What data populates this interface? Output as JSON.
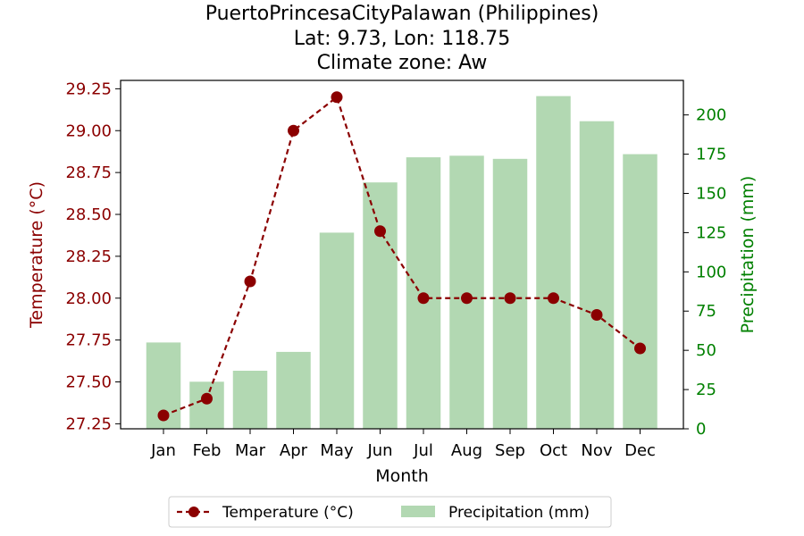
{
  "chart_data": {
    "type": "bar+line",
    "title_lines": [
      "PuertoPrincesaCityPalawan (Philippines)",
      "Lat: 9.73, Lon: 118.75",
      "Climate zone: Aw"
    ],
    "xlabel": "Month",
    "ylabel_left": "Temperature (°C)",
    "ylabel_right": "Precipitation (mm)",
    "categories": [
      "Jan",
      "Feb",
      "Mar",
      "Apr",
      "May",
      "Jun",
      "Jul",
      "Aug",
      "Sep",
      "Oct",
      "Nov",
      "Dec"
    ],
    "temperature": [
      27.3,
      27.4,
      28.1,
      29.0,
      29.2,
      28.4,
      28.0,
      28.0,
      28.0,
      28.0,
      27.9,
      27.7
    ],
    "precipitation": [
      55,
      30,
      37,
      49,
      125,
      157,
      173,
      174,
      172,
      212,
      196,
      175
    ],
    "ylim_left": [
      27.22,
      29.3
    ],
    "yticks_left": [
      27.25,
      27.5,
      27.75,
      28.0,
      28.25,
      28.5,
      28.75,
      29.0,
      29.25
    ],
    "ytick_labels_left": [
      "27.25",
      "27.50",
      "27.75",
      "28.00",
      "28.25",
      "28.50",
      "28.75",
      "29.00",
      "29.25"
    ],
    "ylim_right": [
      0,
      222
    ],
    "yticks_right": [
      0,
      25,
      50,
      75,
      100,
      125,
      150,
      175,
      200
    ],
    "legend": {
      "placement": "bottom-center",
      "entries": [
        "Temperature (°C)",
        "Precipitation (mm)"
      ]
    },
    "colors": {
      "temperature": "#8b0000",
      "precipitation": "#b2d8b2",
      "right_axis": "#008000"
    },
    "grid": false
  }
}
